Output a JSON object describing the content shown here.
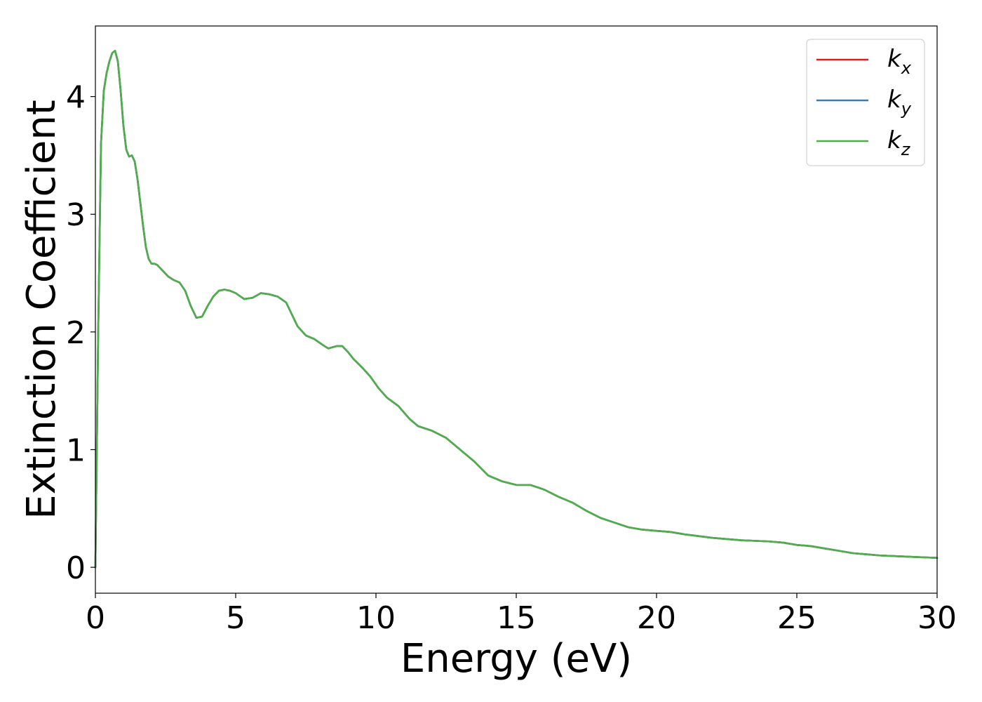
{
  "chart_data": {
    "type": "line",
    "xlabel": "Energy (eV)",
    "ylabel": "Extinction Coefficient",
    "xlim": [
      0,
      30
    ],
    "ylim": [
      -0.22,
      4.6
    ],
    "xticks": [
      0,
      5,
      10,
      15,
      20,
      25,
      30
    ],
    "yticks": [
      0,
      1,
      2,
      3,
      4
    ],
    "grid": false,
    "legend_position": "top-right",
    "legend": [
      {
        "base": "k",
        "sub": "x",
        "color": "#e41a1c"
      },
      {
        "base": "k",
        "sub": "y",
        "color": "#377eb8"
      },
      {
        "base": "k",
        "sub": "z",
        "color": "#4daf4a"
      }
    ],
    "x": [
      0,
      0.1,
      0.2,
      0.3,
      0.4,
      0.5,
      0.6,
      0.7,
      0.8,
      0.9,
      1.0,
      1.1,
      1.2,
      1.3,
      1.4,
      1.5,
      1.6,
      1.7,
      1.8,
      1.9,
      2.0,
      2.1,
      2.2,
      2.4,
      2.6,
      2.8,
      3.0,
      3.2,
      3.4,
      3.6,
      3.8,
      4.0,
      4.2,
      4.4,
      4.6,
      4.8,
      5.0,
      5.3,
      5.6,
      5.9,
      6.2,
      6.5,
      6.8,
      7.0,
      7.2,
      7.5,
      7.8,
      8.1,
      8.3,
      8.6,
      8.8,
      9.0,
      9.2,
      9.5,
      9.8,
      10.1,
      10.4,
      10.8,
      11.2,
      11.5,
      12.0,
      12.5,
      13.0,
      13.5,
      14.0,
      14.5,
      15.0,
      15.5,
      16.0,
      16.5,
      17.0,
      17.5,
      18.0,
      18.5,
      19.0,
      19.5,
      20.0,
      20.5,
      21.0,
      22.0,
      23.0,
      24.0,
      24.5,
      25.0,
      25.5,
      26.0,
      26.5,
      27.0,
      27.5,
      28.0,
      28.5,
      29.0,
      29.5,
      30.0
    ],
    "series": [
      {
        "name": "k_x",
        "color": "#e41a1c",
        "values": [
          0.0,
          2.0,
          3.6,
          4.05,
          4.2,
          4.3,
          4.37,
          4.39,
          4.3,
          4.05,
          3.75,
          3.55,
          3.49,
          3.5,
          3.45,
          3.3,
          3.1,
          2.9,
          2.72,
          2.62,
          2.58,
          2.58,
          2.57,
          2.52,
          2.47,
          2.44,
          2.42,
          2.35,
          2.22,
          2.12,
          2.13,
          2.22,
          2.3,
          2.35,
          2.36,
          2.35,
          2.33,
          2.28,
          2.29,
          2.33,
          2.32,
          2.3,
          2.25,
          2.15,
          2.05,
          1.97,
          1.94,
          1.89,
          1.86,
          1.88,
          1.88,
          1.83,
          1.77,
          1.7,
          1.62,
          1.52,
          1.44,
          1.37,
          1.26,
          1.2,
          1.16,
          1.1,
          1.0,
          0.9,
          0.78,
          0.73,
          0.7,
          0.7,
          0.66,
          0.6,
          0.55,
          0.48,
          0.42,
          0.38,
          0.34,
          0.32,
          0.31,
          0.3,
          0.28,
          0.25,
          0.23,
          0.22,
          0.21,
          0.19,
          0.18,
          0.16,
          0.14,
          0.12,
          0.11,
          0.1,
          0.095,
          0.09,
          0.085,
          0.08
        ]
      },
      {
        "name": "k_y",
        "color": "#377eb8",
        "values": [
          0.0,
          2.0,
          3.6,
          4.05,
          4.2,
          4.3,
          4.37,
          4.39,
          4.3,
          4.05,
          3.75,
          3.55,
          3.49,
          3.5,
          3.45,
          3.3,
          3.1,
          2.9,
          2.72,
          2.62,
          2.58,
          2.58,
          2.57,
          2.52,
          2.47,
          2.44,
          2.42,
          2.35,
          2.22,
          2.12,
          2.13,
          2.22,
          2.3,
          2.35,
          2.36,
          2.35,
          2.33,
          2.28,
          2.29,
          2.33,
          2.32,
          2.3,
          2.25,
          2.15,
          2.05,
          1.97,
          1.94,
          1.89,
          1.86,
          1.88,
          1.88,
          1.83,
          1.77,
          1.7,
          1.62,
          1.52,
          1.44,
          1.37,
          1.26,
          1.2,
          1.16,
          1.1,
          1.0,
          0.9,
          0.78,
          0.73,
          0.7,
          0.7,
          0.66,
          0.6,
          0.55,
          0.48,
          0.42,
          0.38,
          0.34,
          0.32,
          0.31,
          0.3,
          0.28,
          0.25,
          0.23,
          0.22,
          0.21,
          0.19,
          0.18,
          0.16,
          0.14,
          0.12,
          0.11,
          0.1,
          0.095,
          0.09,
          0.085,
          0.08
        ]
      },
      {
        "name": "k_z",
        "color": "#4daf4a",
        "values": [
          0.0,
          2.0,
          3.6,
          4.05,
          4.2,
          4.3,
          4.37,
          4.39,
          4.3,
          4.05,
          3.75,
          3.55,
          3.49,
          3.5,
          3.45,
          3.3,
          3.1,
          2.9,
          2.72,
          2.62,
          2.58,
          2.58,
          2.57,
          2.52,
          2.47,
          2.44,
          2.42,
          2.35,
          2.22,
          2.12,
          2.13,
          2.22,
          2.3,
          2.35,
          2.36,
          2.35,
          2.33,
          2.28,
          2.29,
          2.33,
          2.32,
          2.3,
          2.25,
          2.15,
          2.05,
          1.97,
          1.94,
          1.89,
          1.86,
          1.88,
          1.88,
          1.83,
          1.77,
          1.7,
          1.62,
          1.52,
          1.44,
          1.37,
          1.26,
          1.2,
          1.16,
          1.1,
          1.0,
          0.9,
          0.78,
          0.73,
          0.7,
          0.7,
          0.66,
          0.6,
          0.55,
          0.48,
          0.42,
          0.38,
          0.34,
          0.32,
          0.31,
          0.3,
          0.28,
          0.25,
          0.23,
          0.22,
          0.21,
          0.19,
          0.18,
          0.16,
          0.14,
          0.12,
          0.11,
          0.1,
          0.095,
          0.09,
          0.085,
          0.08
        ]
      }
    ]
  }
}
